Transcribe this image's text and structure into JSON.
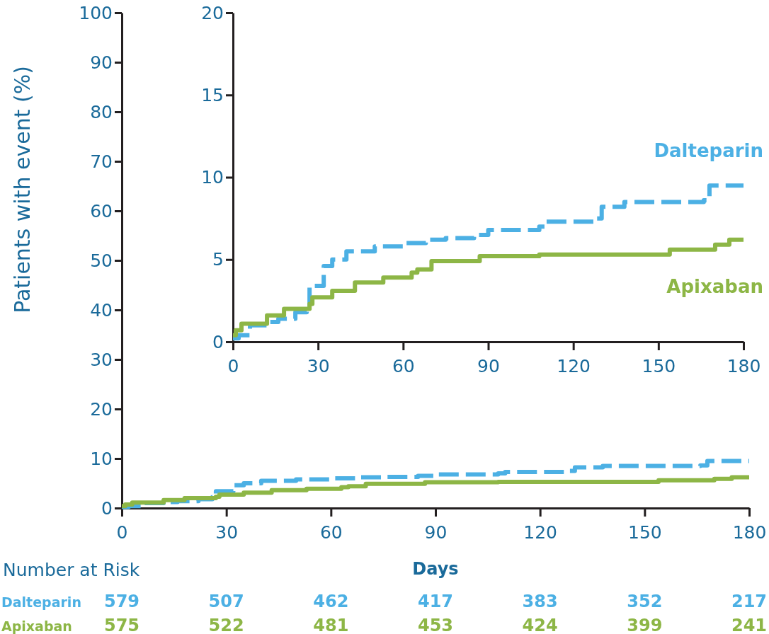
{
  "chart_data": [
    {
      "type": "step",
      "xlabel": "Days",
      "ylabel": "Patients with event (%)",
      "xlim": [
        0,
        180
      ],
      "xticks": [
        0,
        30,
        60,
        90,
        120,
        150,
        180
      ],
      "ylim": [
        0,
        100
      ],
      "yticks": [
        0,
        10,
        20,
        30,
        40,
        50,
        60,
        70,
        80,
        90,
        100
      ],
      "legend": false,
      "grid": false,
      "series": [
        {
          "name": "Dalteparin",
          "color": "#4cb0e4",
          "line_style": "dashed",
          "x": [
            0,
            2,
            6,
            12,
            16,
            22,
            26,
            27,
            32,
            35,
            40,
            50,
            60,
            68,
            75,
            85,
            90,
            108,
            110,
            128,
            130,
            138,
            166,
            168,
            180
          ],
          "values": [
            0.2,
            0.4,
            1.0,
            1.2,
            1.4,
            1.8,
            2.2,
            3.4,
            4.6,
            5.0,
            5.5,
            5.8,
            6.0,
            6.2,
            6.3,
            6.5,
            6.8,
            7.0,
            7.3,
            7.5,
            8.2,
            8.5,
            8.6,
            9.5,
            9.5
          ]
        },
        {
          "name": "Apixaban",
          "color": "#8db646",
          "line_style": "solid",
          "x": [
            0,
            1,
            3,
            12,
            18,
            27,
            28,
            35,
            43,
            53,
            63,
            65,
            70,
            87,
            108,
            154,
            170,
            175,
            180
          ],
          "values": [
            0.4,
            0.7,
            1.1,
            1.6,
            2.0,
            2.3,
            2.7,
            3.1,
            3.6,
            3.9,
            4.2,
            4.4,
            4.9,
            5.2,
            5.3,
            5.6,
            5.9,
            6.2,
            6.2
          ]
        }
      ],
      "annotations": [
        "Number at Risk",
        "579",
        "507",
        "462",
        "417",
        "383",
        "352",
        "217",
        "575",
        "522",
        "481",
        "453",
        "424",
        "399",
        "241"
      ]
    },
    {
      "type": "step",
      "xlim": [
        0,
        180
      ],
      "xticks": [
        0,
        30,
        60,
        90,
        120,
        150,
        180
      ],
      "ylim": [
        0,
        20
      ],
      "yticks": [
        0,
        5,
        10,
        15,
        20
      ],
      "legend": false,
      "grid": false,
      "series": [
        {
          "name": "Dalteparin",
          "color": "#4cb0e4",
          "line_style": "dashed",
          "x": [
            0,
            2,
            6,
            12,
            16,
            22,
            26,
            27,
            32,
            35,
            40,
            50,
            60,
            68,
            75,
            85,
            90,
            108,
            110,
            128,
            130,
            138,
            166,
            168,
            180
          ],
          "values": [
            0.2,
            0.4,
            1.0,
            1.2,
            1.4,
            1.8,
            2.2,
            3.4,
            4.6,
            5.0,
            5.5,
            5.8,
            6.0,
            6.2,
            6.3,
            6.5,
            6.8,
            7.0,
            7.3,
            7.5,
            8.2,
            8.5,
            8.6,
            9.5,
            9.5
          ]
        },
        {
          "name": "Apixaban",
          "color": "#8db646",
          "line_style": "solid",
          "x": [
            0,
            1,
            3,
            12,
            18,
            27,
            28,
            35,
            43,
            53,
            63,
            65,
            70,
            87,
            108,
            154,
            170,
            175,
            180
          ],
          "values": [
            0.4,
            0.7,
            1.1,
            1.6,
            2.0,
            2.3,
            2.7,
            3.1,
            3.6,
            3.9,
            4.2,
            4.4,
            4.9,
            5.2,
            5.3,
            5.6,
            5.9,
            6.2,
            6.2
          ]
        }
      ]
    }
  ]
}
